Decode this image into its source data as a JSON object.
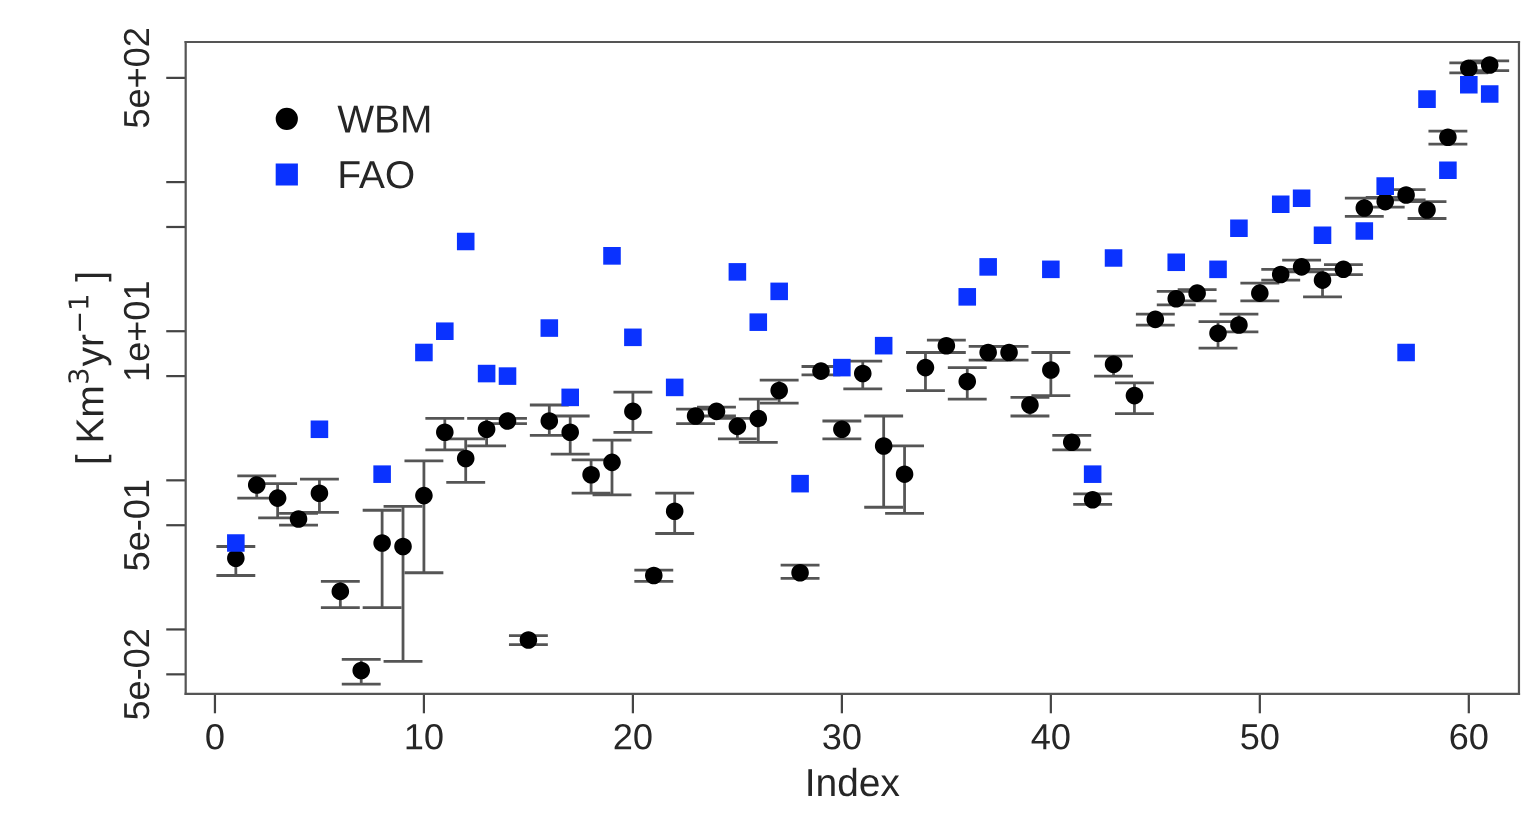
{
  "chart_data": {
    "type": "scatter",
    "xlabel": "Index",
    "ylabel": "[ Km$^{3}$yr$^{−1}$ ]",
    "log": "y",
    "grid": false,
    "legend": "top left",
    "x": [
      1,
      2,
      3,
      4,
      5,
      6,
      7,
      8,
      9,
      10,
      11,
      12,
      13,
      14,
      15,
      16,
      17,
      18,
      19,
      20,
      21,
      22,
      23,
      24,
      25,
      26,
      27,
      28,
      29,
      30,
      31,
      32,
      33,
      34,
      35,
      36,
      37,
      38,
      39,
      40,
      41,
      42,
      43,
      44,
      45,
      46,
      47,
      48,
      49,
      50,
      51,
      52,
      53,
      54,
      55,
      56,
      57,
      58,
      59,
      60,
      61
    ],
    "xlim": [
      -1.4,
      62.4
    ],
    "xticks": [
      0,
      10,
      20,
      30,
      40,
      50,
      60
    ],
    "ylim": [
      0.037,
      870
    ],
    "yticks": [
      {
        "value": 0.05,
        "label": "5e-02"
      },
      {
        "value": 0.1,
        "label": null
      },
      {
        "value": 0.5,
        "label": "5e-01"
      },
      {
        "value": 1,
        "label": null
      },
      {
        "value": 5,
        "label": null
      },
      {
        "value": 10,
        "label": "1e+01"
      },
      {
        "value": 50,
        "label": null
      },
      {
        "value": 100,
        "label": null
      },
      {
        "value": 500,
        "label": "5e+02"
      }
    ],
    "series": [
      {
        "name": "WBM",
        "color": "#000000",
        "marker": "circle",
        "values": [
          0.3,
          0.93,
          0.76,
          0.55,
          0.82,
          0.18,
          0.053,
          0.38,
          0.36,
          0.79,
          2.1,
          1.4,
          2.2,
          2.5,
          0.085,
          2.5,
          2.1,
          1.09,
          1.32,
          2.9,
          0.23,
          0.62,
          2.7,
          2.9,
          2.3,
          2.6,
          4.0,
          0.24,
          5.4,
          2.2,
          5.2,
          1.7,
          1.1,
          5.7,
          8.0,
          4.6,
          7.2,
          7.2,
          3.2,
          5.5,
          1.8,
          0.74,
          6.0,
          3.7,
          12,
          16.5,
          18,
          9.7,
          11,
          18,
          24,
          27,
          22,
          26,
          67,
          74,
          82,
          65,
          200,
          580,
          610
        ],
        "errors": [
          [
            0.23,
            0.36
          ],
          [
            0.76,
            1.07
          ],
          [
            0.56,
            0.95
          ],
          [
            0.5,
            0.6
          ],
          [
            0.61,
            1.02
          ],
          [
            0.14,
            0.21
          ],
          [
            0.043,
            0.063
          ],
          [
            0.14,
            0.63
          ],
          [
            0.061,
            0.67
          ],
          [
            0.24,
            1.35
          ],
          [
            1.6,
            2.6
          ],
          [
            0.97,
            1.9
          ],
          [
            1.7,
            2.6
          ],
          [
            2.4,
            2.6
          ],
          [
            0.079,
            0.091
          ],
          [
            2.0,
            3.2
          ],
          [
            1.5,
            2.7
          ],
          [
            0.82,
            1.37
          ],
          [
            0.8,
            1.86
          ],
          [
            2.1,
            3.9
          ],
          [
            0.21,
            0.25
          ],
          [
            0.44,
            0.82
          ],
          [
            2.4,
            3.0
          ],
          [
            2.7,
            3.1
          ],
          [
            1.9,
            2.6
          ],
          [
            1.8,
            3.5
          ],
          [
            3.3,
            4.7
          ],
          [
            0.22,
            0.27
          ],
          [
            5.1,
            5.8
          ],
          [
            1.9,
            2.5
          ],
          [
            4.1,
            6.3
          ],
          [
            0.66,
            2.7
          ],
          [
            0.6,
            1.7
          ],
          [
            4.0,
            7.2
          ],
          [
            7.2,
            8.7
          ],
          [
            3.5,
            5.7
          ],
          [
            6.4,
            7.9
          ],
          [
            6.4,
            7.9
          ],
          [
            2.7,
            3.6
          ],
          [
            3.7,
            7.2
          ],
          [
            1.6,
            2.0
          ],
          [
            0.69,
            0.81
          ],
          [
            5.0,
            6.8
          ],
          [
            2.8,
            4.5
          ],
          [
            11,
            13
          ],
          [
            15,
            18.5
          ],
          [
            16,
            19
          ],
          [
            7.7,
            11.6
          ],
          [
            9.9,
            13
          ],
          [
            16,
            21
          ],
          [
            22,
            26
          ],
          [
            25,
            30
          ],
          [
            17,
            26
          ],
          [
            24,
            28
          ],
          [
            59,
            78
          ],
          [
            68,
            79
          ],
          [
            76,
            89
          ],
          [
            57,
            74
          ],
          [
            180,
            220
          ],
          [
            540,
            630
          ],
          [
            560,
            650
          ]
        ]
      },
      {
        "name": "FAO",
        "color": "#0a32ff",
        "marker": "square",
        "values": [
          0.38,
          null,
          null,
          null,
          2.2,
          null,
          null,
          1.1,
          null,
          7.2,
          10,
          40,
          5.2,
          5.0,
          null,
          10.5,
          3.6,
          null,
          32,
          9.1,
          null,
          4.2,
          null,
          null,
          25,
          11.5,
          18.5,
          0.95,
          null,
          5.7,
          null,
          8.0,
          null,
          null,
          null,
          17,
          27,
          null,
          null,
          26,
          null,
          1.1,
          31,
          null,
          null,
          29,
          null,
          26,
          49,
          null,
          71,
          78,
          44,
          null,
          47,
          94,
          7.2,
          360,
          120,
          450,
          390
        ]
      }
    ]
  }
}
